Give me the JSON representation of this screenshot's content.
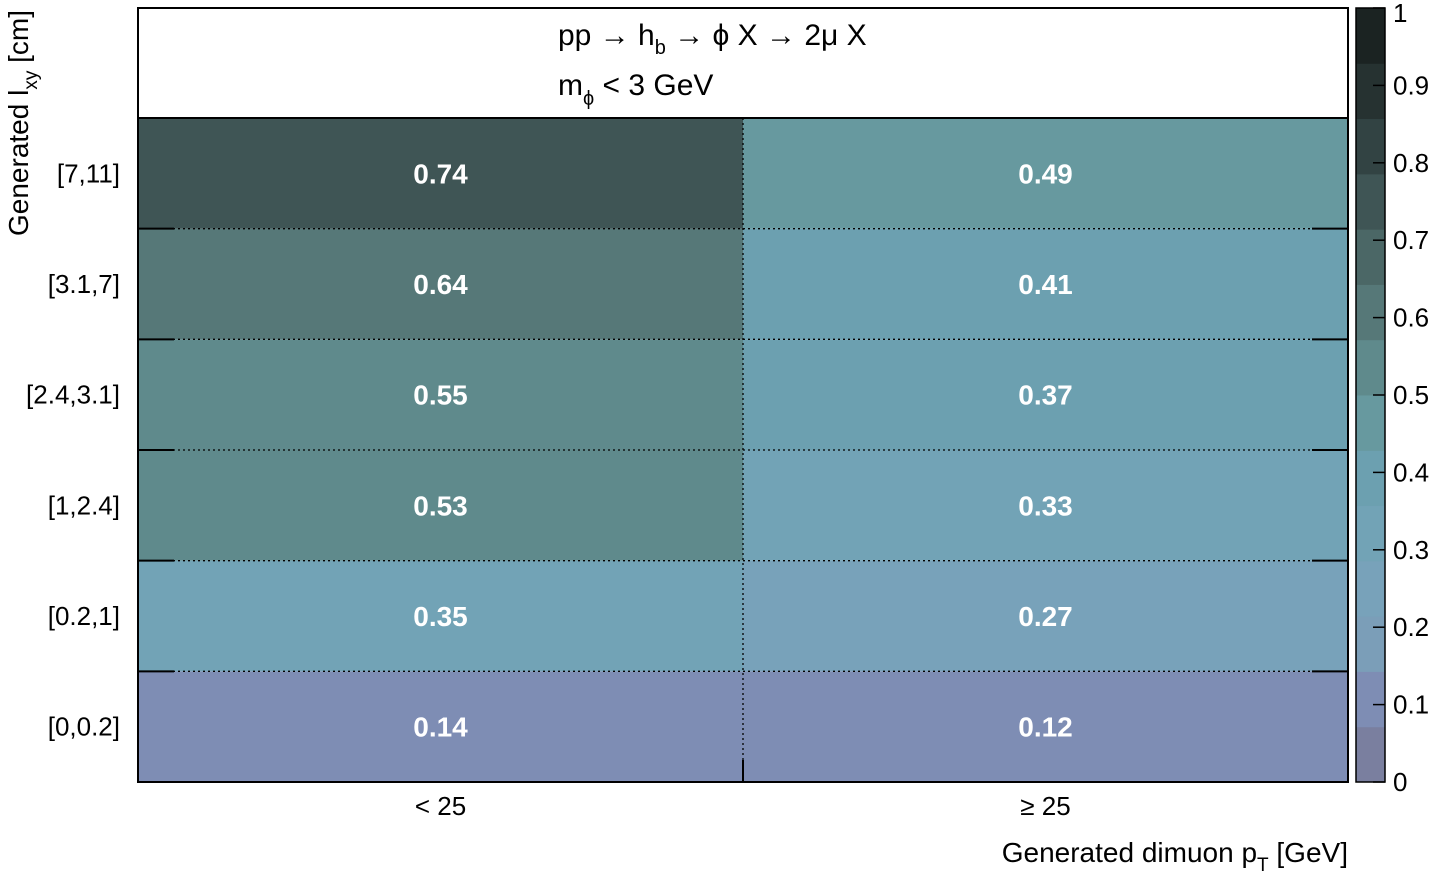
{
  "chart_data": {
    "type": "heatmap",
    "annotation": {
      "line1": {
        "prefix": "pp → h",
        "sub": "b",
        "suffix": " → ϕ X → 2μ X"
      },
      "line2": {
        "prefix": "m",
        "sub": "ϕ",
        "suffix": " < 3 GeV"
      }
    },
    "xlabel": {
      "prefix": "Generated dimuon p",
      "sub": "T",
      "suffix": " [GeV]"
    },
    "ylabel": {
      "prefix": "Generated l",
      "sub": "xy",
      "suffix": " [cm]"
    },
    "x_categories": [
      "< 25",
      "≥ 25"
    ],
    "y_categories": [
      "[0,0.2]",
      "[0.2,1]",
      "[1,2.4]",
      "[2.4,3.1]",
      "[3.1,7]",
      "[7,11]"
    ],
    "values": [
      [
        0.14,
        0.12
      ],
      [
        0.35,
        0.27
      ],
      [
        0.53,
        0.33
      ],
      [
        0.55,
        0.37
      ],
      [
        0.64,
        0.41
      ],
      [
        0.74,
        0.49
      ]
    ],
    "zlim": [
      0,
      1
    ],
    "colorbar_ticks": [
      "0",
      "0.1",
      "0.2",
      "0.3",
      "0.4",
      "0.5",
      "0.6",
      "0.7",
      "0.8",
      "0.9",
      "1"
    ],
    "palette": [
      "#7a7f9f",
      "#7e8db4",
      "#7b9eb8",
      "#78a2ba",
      "#72a3b6",
      "#6ca0b0",
      "#67999f",
      "#5f8a8c",
      "#567878",
      "#4b6766",
      "#3f5555",
      "#324343",
      "#263231",
      "#1b2322"
    ]
  }
}
